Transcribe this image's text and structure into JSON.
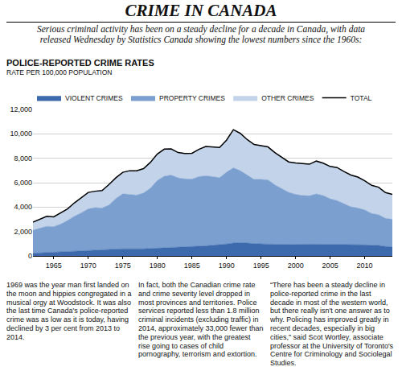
{
  "header": {
    "title": "CRIME IN CANADA",
    "subtitle": "Serious criminal activity has been on a steady decline for a decade in Canada, with data released Wednesday by Statistics Canada showing the lowest numbers since the 1960s:"
  },
  "chart_data": {
    "type": "area",
    "title": "POLICE-REPORTED CRIME RATES",
    "ylabel": "RATE PER 100,000 POPULATION",
    "stacked": true,
    "grid": true,
    "legend": "top",
    "x": [
      1962,
      1963,
      1964,
      1965,
      1966,
      1967,
      1968,
      1969,
      1970,
      1971,
      1972,
      1973,
      1974,
      1975,
      1976,
      1977,
      1978,
      1979,
      1980,
      1981,
      1982,
      1983,
      1984,
      1985,
      1986,
      1987,
      1988,
      1989,
      1990,
      1991,
      1992,
      1993,
      1994,
      1995,
      1996,
      1997,
      1998,
      1999,
      2000,
      2001,
      2002,
      2003,
      2004,
      2005,
      2006,
      2007,
      2008,
      2009,
      2010,
      2011,
      2012,
      2013,
      2014
    ],
    "xlim": [
      1962,
      2014
    ],
    "xticks": [
      1965,
      1970,
      1975,
      1980,
      1985,
      1990,
      1995,
      2000,
      2005,
      2010
    ],
    "ylim": [
      0,
      12000
    ],
    "yticks": [
      0,
      {
        "value": 2000,
        "label": "2,000"
      },
      {
        "value": 4000,
        "label": "4,000"
      },
      {
        "value": 6000,
        "label": "6,000"
      },
      {
        "value": 8000,
        "label": "8,000"
      },
      {
        "value": 10000,
        "label": "10,000"
      },
      {
        "value": 12000,
        "label": "12,000"
      }
    ],
    "series": [
      {
        "name": "VIOLENT CRIMES",
        "type": "area",
        "color": "#3d6aad",
        "values": [
          221,
          249,
          284,
          299,
          347,
          381,
          423,
          453,
          481,
          492,
          497,
          524,
          553,
          585,
          584,
          572,
          580,
          610,
          636,
          654,
          671,
          679,
          701,
          735,
          785,
          829,
          868,
          911,
          973,
          1059,
          1077,
          1052,
          1013,
          975,
          963,
          944,
          923,
          933,
          963,
          960,
          948,
          962,
          945,
          940,
          951,
          934,
          920,
          914,
          904,
          873,
          858,
          778,
          746
        ]
      },
      {
        "name": "PROPERTY CRIMES",
        "type": "area",
        "color": "#7b9fcf",
        "values": [
          1891,
          2047,
          2146,
          2099,
          2252,
          2522,
          2828,
          3082,
          3369,
          3466,
          3430,
          3644,
          4151,
          4505,
          4428,
          4409,
          4574,
          4944,
          5551,
          5873,
          5955,
          5717,
          5607,
          5560,
          5714,
          5731,
          5630,
          5503,
          5881,
          6160,
          5904,
          5575,
          5257,
          5292,
          5274,
          4880,
          4569,
          4276,
          4081,
          3986,
          3974,
          4122,
          4003,
          3737,
          3588,
          3320,
          3100,
          3011,
          2866,
          2600,
          2520,
          2300,
          2250
        ]
      },
      {
        "name": "OTHER CRIMES",
        "type": "area",
        "color": "#c3d4ea",
        "values": [
          658,
          724,
          820,
          802,
          901,
          947,
          1099,
          1215,
          1350,
          1342,
          1423,
          1682,
          1696,
          1760,
          1968,
          1989,
          1996,
          2116,
          2163,
          2223,
          2144,
          2074,
          2082,
          2115,
          2231,
          2400,
          2422,
          2476,
          2626,
          3121,
          3059,
          2903,
          2860,
          2743,
          2693,
          2636,
          2608,
          2491,
          2576,
          2644,
          2588,
          2686,
          2652,
          2653,
          2701,
          2656,
          2610,
          2535,
          2390,
          2307,
          2252,
          2112,
          2054
        ]
      },
      {
        "name": "TOTAL",
        "type": "line",
        "color": "#000000",
        "values": [
          2770,
          3020,
          3250,
          3200,
          3500,
          3850,
          4350,
          4750,
          5200,
          5300,
          5350,
          5850,
          6400,
          6850,
          6980,
          6970,
          7150,
          7670,
          8350,
          8750,
          8770,
          8470,
          8390,
          8410,
          8730,
          8960,
          8920,
          8890,
          9480,
          10340,
          10040,
          9530,
          9130,
          9010,
          8930,
          8460,
          8100,
          7700,
          7620,
          7590,
          7510,
          7770,
          7600,
          7330,
          7240,
          6910,
          6630,
          6460,
          6160,
          5780,
          5630,
          5190,
          5050
        ]
      }
    ]
  },
  "text_columns": [
    "1969 was the year man first landed on the moon and hippies congregated in a musical orgy at Woodstock. It was also the last time Canada's police-reported crime was as low as it is today, having declined by 3 per cent from 2013 to 2014.",
    "In fact, both the Canadian crime rate and crime severity level dropped in most provinces and territories. Police services reported less than 1.8 million criminal incidents (excluding traffic) in 2014, approximately 33,000 fewer than the previous year, with the greatest rise going to cases of child pornography, terrorism and extortion.",
    "“There has been a steady decline in police-reported crime in the last decade in most of the western world, but there really isn't one answer as to why. Policing has improved greatly in recent decades, especially in big cities,” said Scot Wortley, associate professor at the University of Toronto's Centre for Criminology and Sociolegal Studies."
  ]
}
